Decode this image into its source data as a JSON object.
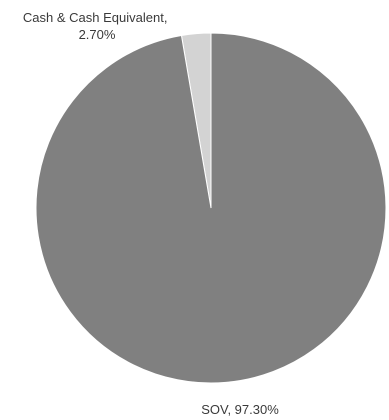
{
  "chart_data": {
    "type": "pie",
    "slices": [
      {
        "label_lines": [
          "Cash & Cash Equivalent,",
          "2.70%"
        ],
        "value": 2.7,
        "color": "#d3d3d3"
      },
      {
        "label_lines": [
          "SOV, 97.30%"
        ],
        "value": 97.3,
        "color": "#808080"
      }
    ],
    "start": "12 o'clock, slices drawn counter-clockwise",
    "legend": "none"
  }
}
